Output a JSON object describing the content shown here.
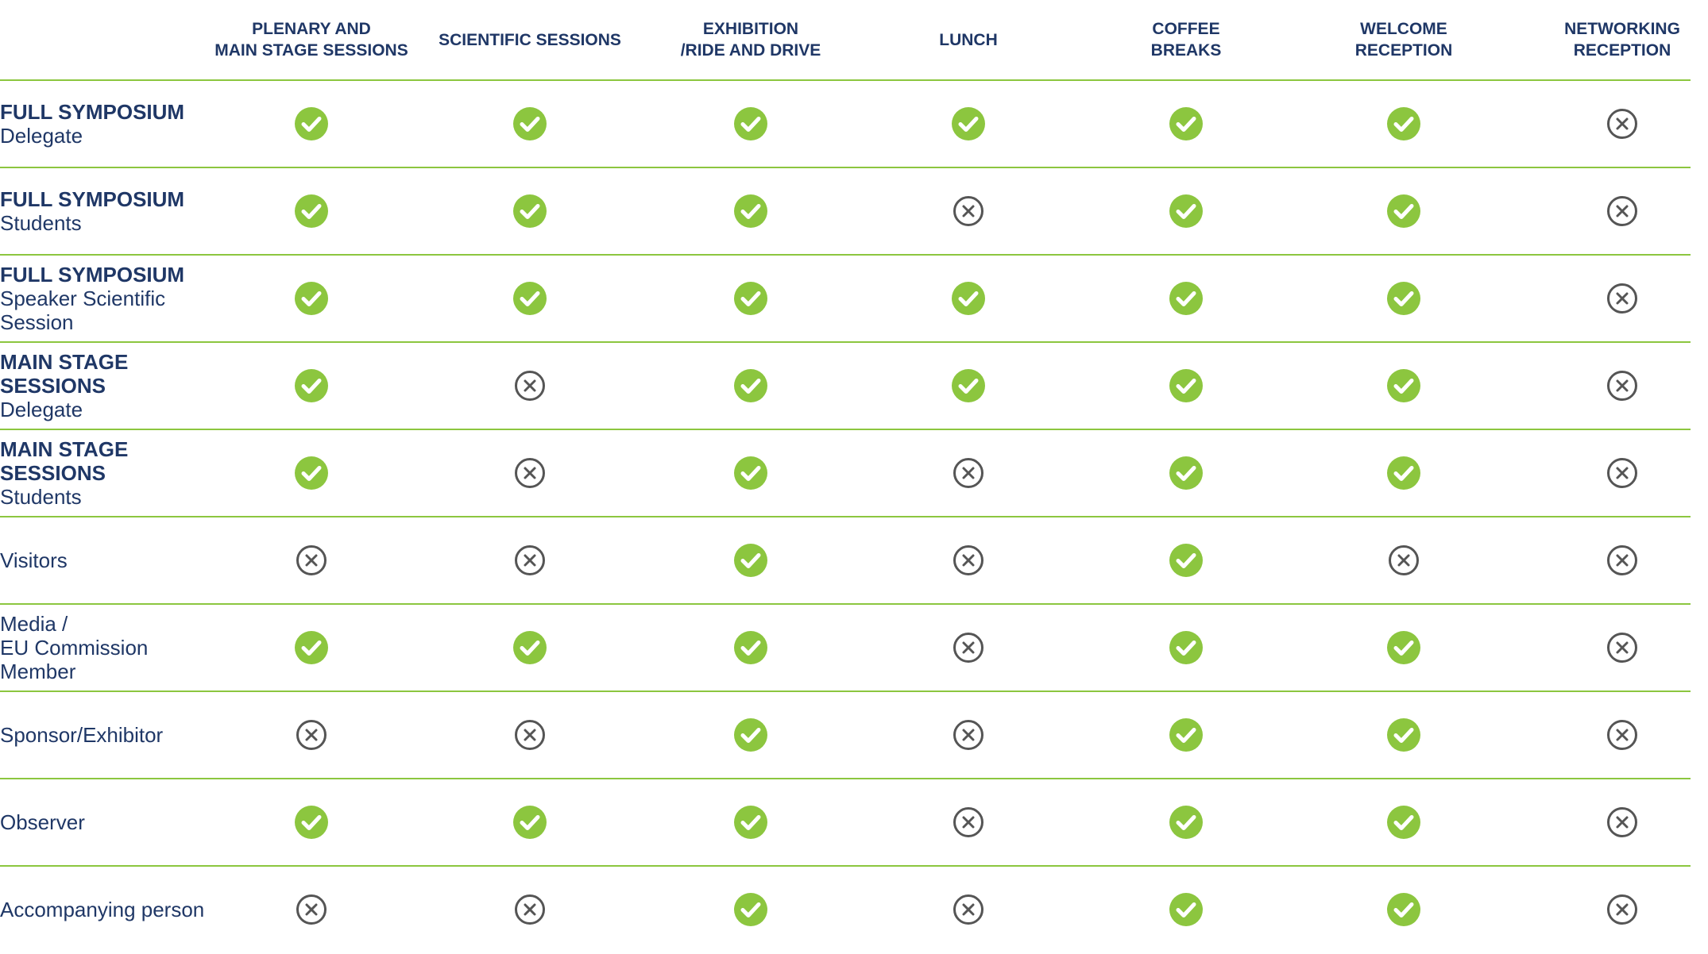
{
  "columns": [
    "PLENARY AND\nMAIN STAGE SESSIONS",
    "SCIENTIFIC SESSIONS",
    "EXHIBITION\n/RIDE AND DRIVE",
    "LUNCH",
    "COFFEE\nBREAKS",
    "WELCOME\nRECEPTION",
    "NETWORKING\nRECEPTION"
  ],
  "rows": [
    {
      "title": "FULL SYMPOSIUM",
      "sub": "Delegate",
      "access": [
        "yes",
        "yes",
        "yes",
        "yes",
        "yes",
        "yes",
        "no"
      ]
    },
    {
      "title": "FULL SYMPOSIUM",
      "sub": "Students",
      "access": [
        "yes",
        "yes",
        "yes",
        "no",
        "yes",
        "yes",
        "no"
      ]
    },
    {
      "title": "FULL SYMPOSIUM",
      "sub": "Speaker Scientific Session",
      "access": [
        "yes",
        "yes",
        "yes",
        "yes",
        "yes",
        "yes",
        "no"
      ]
    },
    {
      "title": "MAIN STAGE SESSIONS",
      "sub": "Delegate",
      "access": [
        "yes",
        "no",
        "yes",
        "yes",
        "yes",
        "yes",
        "no"
      ]
    },
    {
      "title": "MAIN STAGE SESSIONS",
      "sub": "Students",
      "access": [
        "yes",
        "no",
        "yes",
        "no",
        "yes",
        "yes",
        "no"
      ]
    },
    {
      "title": "",
      "sub": "Visitors",
      "access": [
        "no",
        "no",
        "yes",
        "no",
        "yes",
        "no",
        "no"
      ]
    },
    {
      "title": "",
      "sub": "Media /\nEU Commission\nMember",
      "access": [
        "yes",
        "yes",
        "yes",
        "no",
        "yes",
        "yes",
        "no"
      ]
    },
    {
      "title": "",
      "sub": "Sponsor/Exhibitor",
      "access": [
        "no",
        "no",
        "yes",
        "no",
        "yes",
        "yes",
        "no"
      ]
    },
    {
      "title": "",
      "sub": "Observer",
      "access": [
        "yes",
        "yes",
        "yes",
        "no",
        "yes",
        "yes",
        "no"
      ]
    },
    {
      "title": "",
      "sub": "Accompanying person",
      "access": [
        "no",
        "no",
        "yes",
        "no",
        "yes",
        "yes",
        "no"
      ]
    }
  ],
  "icons": {
    "yes": "check-circle-icon",
    "no": "cross-circle-icon"
  },
  "colors": {
    "check": "#8cc63f",
    "cross": "#555555",
    "text": "#1f3766",
    "rule": "#8cc63f"
  }
}
